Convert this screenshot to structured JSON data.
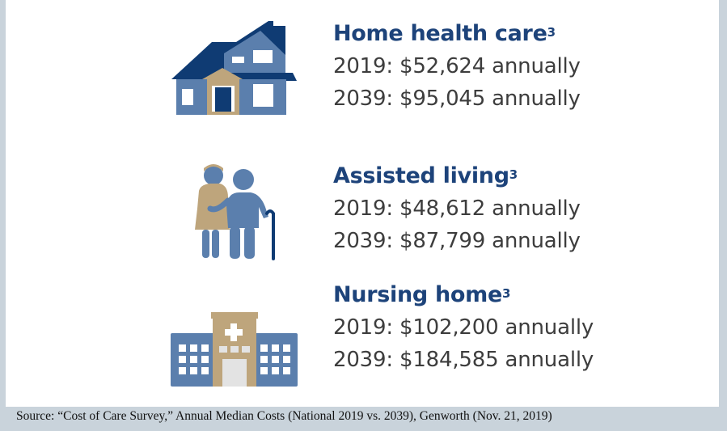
{
  "items": [
    {
      "title": "Home health care",
      "footnote": "3",
      "lines": [
        "2019: $52,624 annually",
        "2039: $95,045 annually"
      ],
      "icon": "house-icon"
    },
    {
      "title": "Assisted living",
      "footnote": "3",
      "lines": [
        "2019: $48,612 annually",
        "2039: $87,799 annually"
      ],
      "icon": "caregiver-elderly-icon"
    },
    {
      "title": "Nursing home",
      "footnote": "3",
      "lines": [
        "2019: $102,200 annually",
        "2039: $184,585 annually"
      ],
      "icon": "hospital-icon"
    }
  ],
  "source": "Source: “Cost of Care Survey,” Annual Median Costs (National 2019 vs. 2039), Genworth (Nov. 21, 2019)",
  "colors": {
    "navy": "#1d437a",
    "blue": "#5b7fad",
    "tan": "#bea57c",
    "text": "#3d3d3d",
    "background": "#c9d3db"
  }
}
